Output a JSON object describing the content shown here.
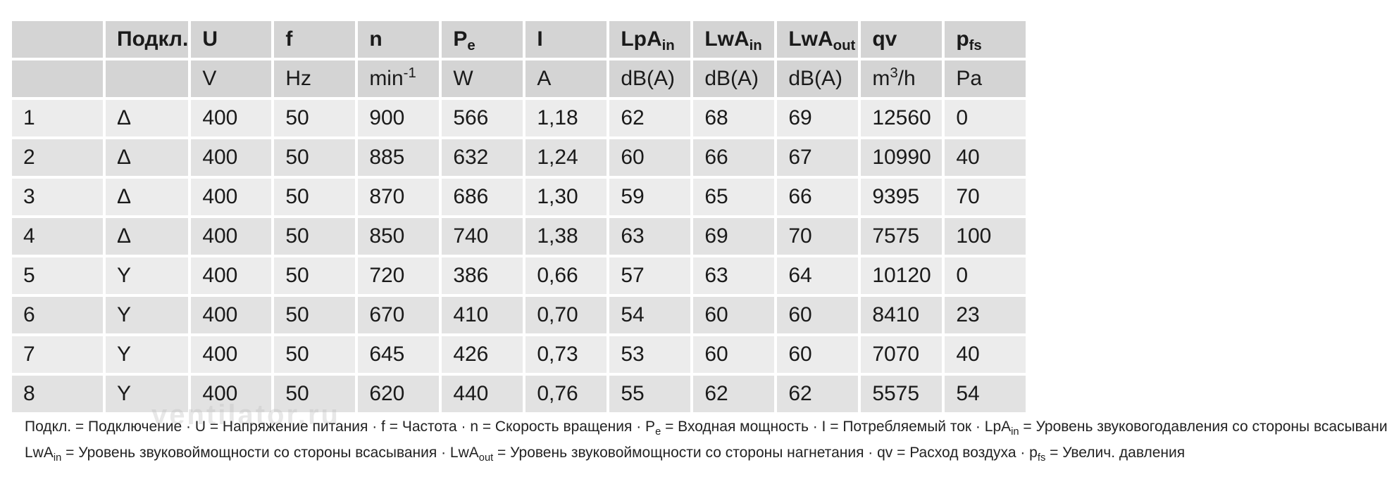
{
  "header": {
    "col0": "",
    "col1": "Подкл.",
    "u": "U",
    "f": "f",
    "n": "n",
    "pe_main": "P",
    "pe_sub": "e",
    "i": "I",
    "lpa_main": "LpA",
    "lpa_sub": "in",
    "lwa_in_main": "LwA",
    "lwa_in_sub": "in",
    "lwa_out_main": "LwA",
    "lwa_out_sub": "out",
    "qv": "qv",
    "pfs_main": "p",
    "pfs_sub": "fs"
  },
  "units": {
    "col0": "",
    "col1": "",
    "u": "V",
    "f": "Hz",
    "n_main": "min",
    "n_sup": "-1",
    "pe": "W",
    "i": "A",
    "lpa": "dB(A)",
    "lwa_in": "dB(A)",
    "lwa_out": "dB(A)",
    "qv_main": "m",
    "qv_sup": "3",
    "qv_tail": "/h",
    "pfs": "Pa"
  },
  "rows": [
    [
      "1",
      "Δ",
      "400",
      "50",
      "900",
      "566",
      "1,18",
      "62",
      "68",
      "69",
      "12560",
      "0"
    ],
    [
      "2",
      "Δ",
      "400",
      "50",
      "885",
      "632",
      "1,24",
      "60",
      "66",
      "67",
      "10990",
      "40"
    ],
    [
      "3",
      "Δ",
      "400",
      "50",
      "870",
      "686",
      "1,30",
      "59",
      "65",
      "66",
      "9395",
      "70"
    ],
    [
      "4",
      "Δ",
      "400",
      "50",
      "850",
      "740",
      "1,38",
      "63",
      "69",
      "70",
      "7575",
      "100"
    ],
    [
      "5",
      "Y",
      "400",
      "50",
      "720",
      "386",
      "0,66",
      "57",
      "63",
      "64",
      "10120",
      "0"
    ],
    [
      "6",
      "Y",
      "400",
      "50",
      "670",
      "410",
      "0,70",
      "54",
      "60",
      "60",
      "8410",
      "23"
    ],
    [
      "7",
      "Y",
      "400",
      "50",
      "645",
      "426",
      "0,73",
      "53",
      "60",
      "60",
      "7070",
      "40"
    ],
    [
      "8",
      "Y",
      "400",
      "50",
      "620",
      "440",
      "0,76",
      "55",
      "62",
      "62",
      "5575",
      "54"
    ]
  ],
  "legend": {
    "l1_a": "Подкл. = Подключение · U = Напряжение питания · f = Частота · n = Скорость вращения · P",
    "l1_pe_sub": "e",
    "l1_b": " = Входная мощность · I = Потребляемый ток · LpA",
    "l1_lpa_sub": "in",
    "l1_c": " = Уровень звуковогодавления со стороны всасывания",
    "l2_a": "LwA",
    "l2_in_sub": "in",
    "l2_b": " = Уровень звуковоймощности со стороны всасывания · LwA",
    "l2_out_sub": "out",
    "l2_c": " = Уровень звуковоймощности со стороны нагнетания · qv = Расход воздуха · p",
    "l2_fs_sub": "fs",
    "l2_d": " = Увелич. давления"
  },
  "watermark": "ventilator.ru"
}
